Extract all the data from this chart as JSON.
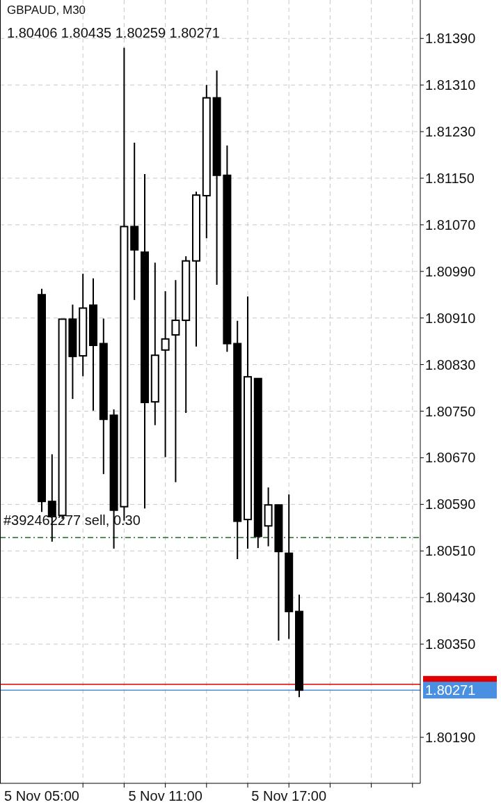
{
  "chart_data": {
    "type": "candlestick",
    "title": "GBPAUD, M30",
    "subtitle": "1.80406 1.80435 1.80259 1.80271",
    "categories": [
      "5 Nov 05:00",
      null,
      null,
      null,
      null,
      null,
      null,
      null,
      null,
      null,
      null,
      null,
      "5 Nov 11:00",
      null,
      null,
      null,
      null,
      null,
      null,
      null,
      null,
      null,
      null,
      null,
      "5 Nov 17:00",
      null,
      null,
      null,
      null,
      null,
      null,
      null,
      null,
      null,
      null,
      null,
      null
    ],
    "ohlc": [
      [
        1.8095,
        1.8096,
        1.80577,
        1.80595
      ],
      [
        1.80595,
        1.80676,
        1.80526,
        1.80569
      ],
      [
        1.80571,
        1.80908,
        1.80565,
        1.80908
      ],
      [
        1.80908,
        1.80933,
        1.80771,
        1.80844
      ],
      [
        1.80845,
        1.80986,
        1.8081,
        1.80927
      ],
      [
        1.80932,
        1.80978,
        1.80751,
        1.80863
      ],
      [
        1.80866,
        1.80909,
        1.80642,
        1.80736
      ],
      [
        1.80743,
        1.80753,
        1.80514,
        1.8058
      ],
      [
        1.80586,
        1.81374,
        1.80562,
        1.81067
      ],
      [
        1.81067,
        1.81211,
        1.80941,
        1.81027
      ],
      [
        1.81023,
        1.81157,
        1.80583,
        1.80765
      ],
      [
        1.80766,
        1.81005,
        1.80726,
        1.80846
      ],
      [
        1.80855,
        1.80956,
        1.80671,
        1.80874
      ],
      [
        1.80881,
        1.80975,
        1.80628,
        1.80906
      ],
      [
        1.80906,
        1.81016,
        1.80747,
        1.81008
      ],
      [
        1.81008,
        1.81127,
        1.80861,
        1.81121
      ],
      [
        1.8112,
        1.8131,
        1.81047,
        1.81288
      ],
      [
        1.81288,
        1.81335,
        1.80967,
        1.81155
      ],
      [
        1.81155,
        1.81206,
        1.80852,
        1.80866
      ],
      [
        1.80866,
        1.80905,
        1.80496,
        1.80561
      ],
      [
        1.80564,
        1.80947,
        1.80514,
        1.80809
      ],
      [
        1.80806,
        1.80806,
        1.80515,
        1.80535
      ],
      [
        1.80553,
        1.80619,
        1.80518,
        1.80589
      ],
      [
        1.80589,
        1.80589,
        1.80356,
        1.80509
      ],
      [
        1.80506,
        1.80607,
        1.80359,
        1.80406
      ],
      [
        1.80406,
        1.80435,
        1.80259,
        1.80271
      ],
      null,
      null,
      null,
      null,
      null,
      null,
      null,
      null,
      null,
      null,
      null
    ],
    "colors": [
      "#000000",
      "#000000",
      "#ffffff",
      "#000000",
      "#ffffff",
      "#000000",
      "#000000",
      "#000000",
      "#ffffff",
      "#000000",
      "#000000",
      "#ffffff",
      "#ffffff",
      "#ffffff",
      "#ffffff",
      "#ffffff",
      "#ffffff",
      "#000000",
      "#000000",
      "#000000",
      "#ffffff",
      "#000000",
      "#ffffff",
      "#000000",
      "#000000",
      "#000000",
      null,
      null,
      null,
      null,
      null,
      null,
      null,
      null,
      null,
      null,
      null
    ],
    "ylim": [
      1.80111,
      1.81456
    ],
    "yticks": [
      {
        "value": 1.8139,
        "label": "1.81390"
      },
      {
        "value": 1.8131,
        "label": "1.81310"
      },
      {
        "value": 1.8123,
        "label": "1.81230"
      },
      {
        "value": 1.8115,
        "label": "1.81150"
      },
      {
        "value": 1.8107,
        "label": "1.81070"
      },
      {
        "value": 1.8099,
        "label": "1.80990"
      },
      {
        "value": 1.8091,
        "label": "1.80910"
      },
      {
        "value": 1.8083,
        "label": "1.80830"
      },
      {
        "value": 1.8075,
        "label": "1.80750"
      },
      {
        "value": 1.8067,
        "label": "1.80670"
      },
      {
        "value": 1.8059,
        "label": "1.80590"
      },
      {
        "value": 1.8051,
        "label": "1.80510"
      },
      {
        "value": 1.8043,
        "label": "1.80430"
      },
      {
        "value": 1.8035,
        "label": "1.80350"
      },
      {
        "value": 1.8019,
        "label": "1.80190"
      }
    ],
    "grid": true,
    "ref_lines": [
      {
        "axis": "y",
        "value": 1.80533,
        "label": "#392462277 sell, 0.30",
        "color": "#1e6b1e",
        "line_style": "dashed"
      },
      {
        "axis": "y",
        "value": 1.80281,
        "color": "#e00000",
        "line_style": "solid"
      },
      {
        "axis": "y",
        "value": 1.80271,
        "label": "1.80271",
        "color": "#4a90e2",
        "line_style": "solid"
      }
    ]
  }
}
